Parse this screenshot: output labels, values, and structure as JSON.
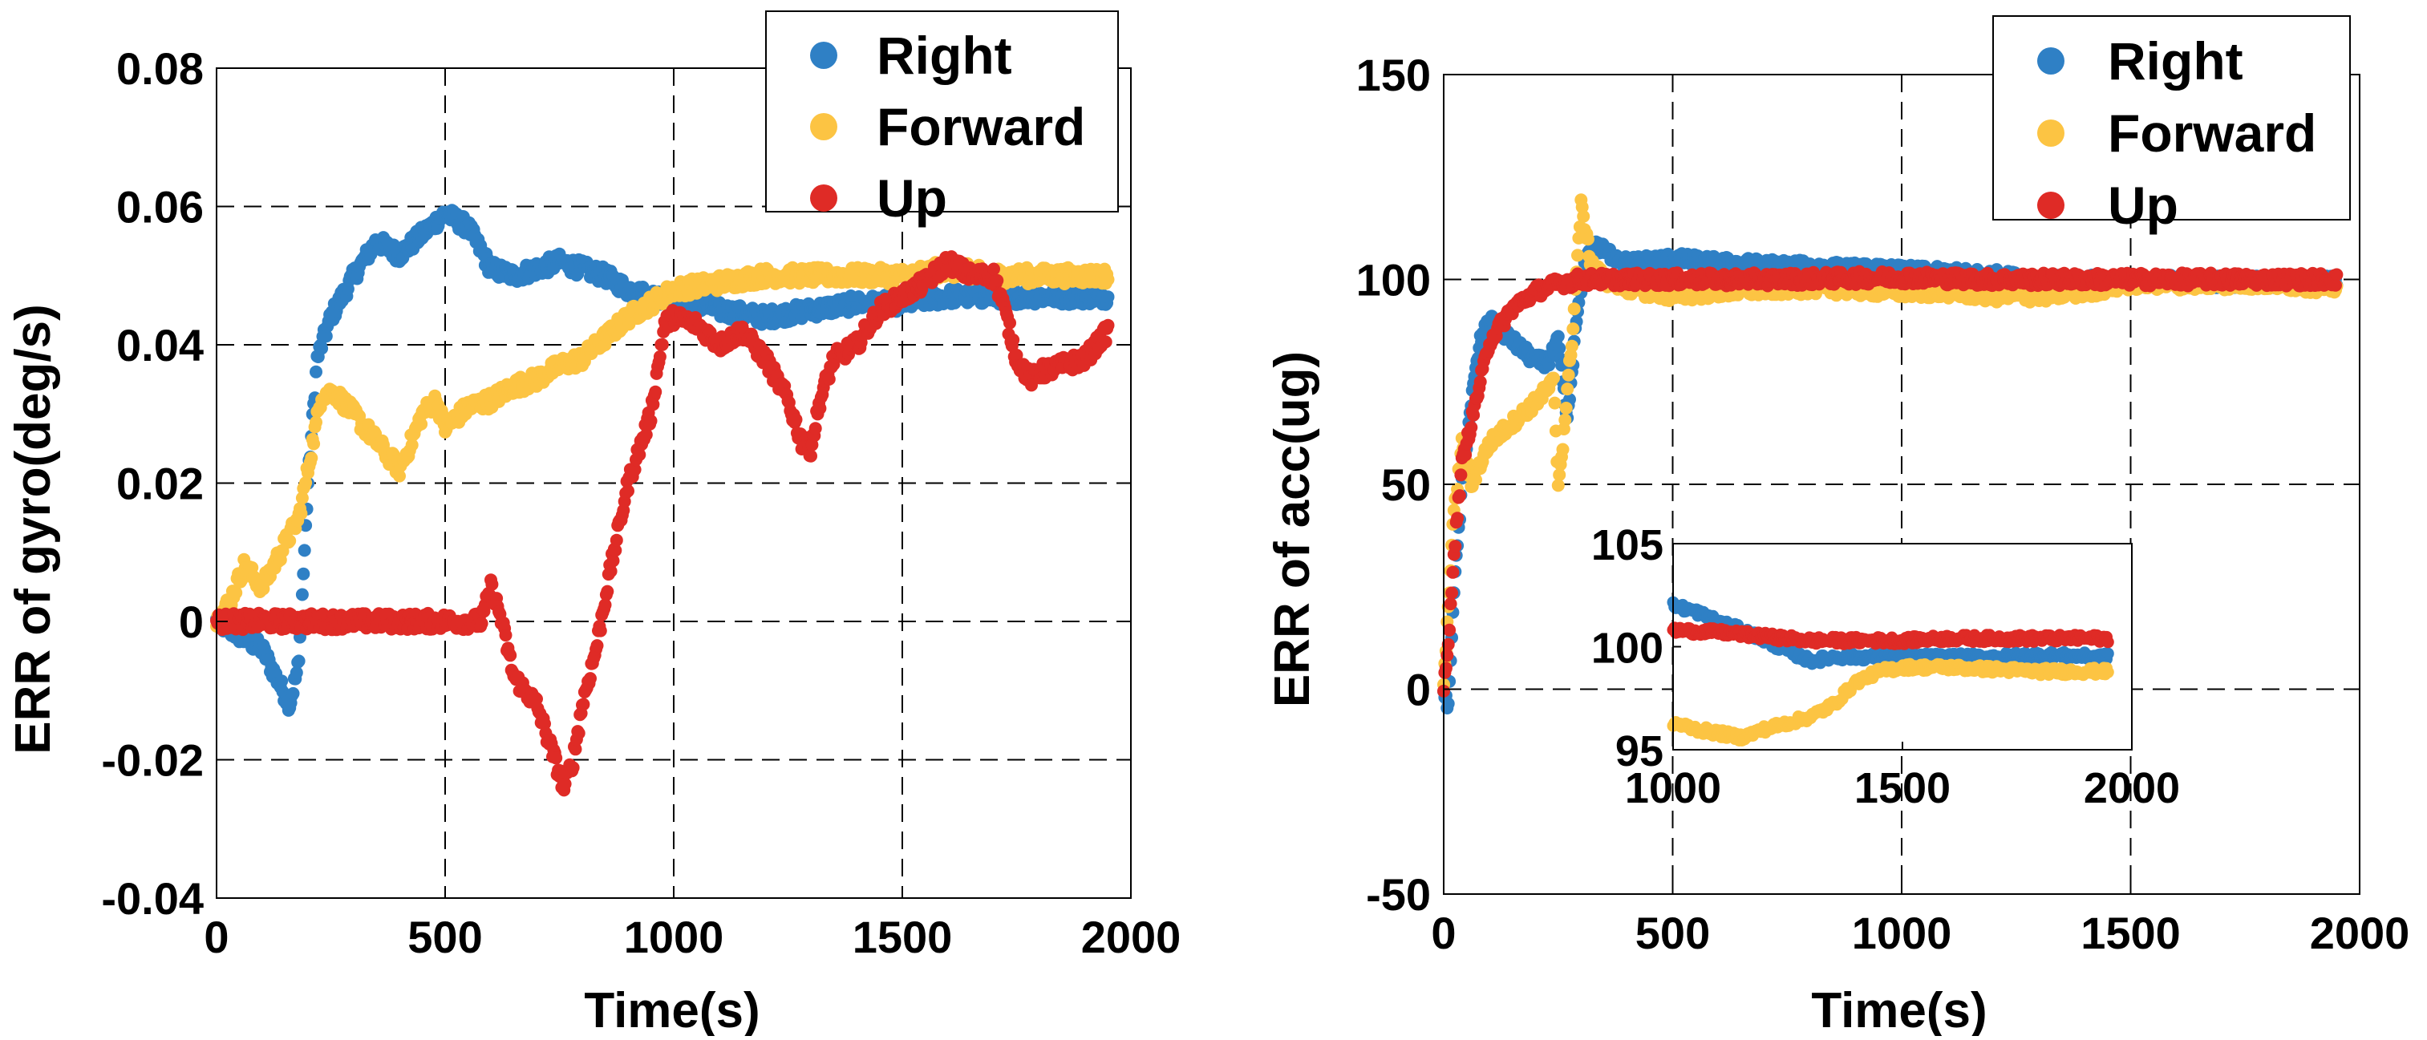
{
  "colors": {
    "right": "#2f80c5",
    "forward": "#fcc443",
    "up": "#df2b26"
  },
  "chart_data": [
    {
      "type": "scatter",
      "title": "",
      "xlabel": "Time(s)",
      "ylabel": "ERR of gyro(deg/s)",
      "xlim": [
        0,
        2000
      ],
      "ylim": [
        -0.04,
        0.08
      ],
      "xticks": [
        0,
        500,
        1000,
        1500,
        2000
      ],
      "xtick_labels": [
        "0",
        "500",
        "1000",
        "1500",
        "2000"
      ],
      "yticks": [
        -0.04,
        -0.02,
        0,
        0.02,
        0.04,
        0.06,
        0.08
      ],
      "ytick_labels": [
        "-0.04",
        "-0.02",
        "0",
        "0.02",
        "0.04",
        "0.06",
        "0.08"
      ],
      "grid": true,
      "legend": "top-right",
      "legend_labels": [
        "Right",
        "Forward",
        "Up"
      ],
      "series": [
        {
          "name": "Right",
          "color_key": "right",
          "x": [
            0,
            50,
            100,
            130,
            160,
            180,
            200,
            220,
            250,
            300,
            350,
            400,
            450,
            500,
            550,
            600,
            650,
            700,
            750,
            800,
            850,
            900,
            950,
            1000,
            1100,
            1200,
            1300,
            1400,
            1500,
            1600,
            1700,
            1800,
            1900,
            1950
          ],
          "y": [
            0,
            -0.002,
            -0.004,
            -0.008,
            -0.012,
            -0.006,
            0.02,
            0.038,
            0.044,
            0.05,
            0.055,
            0.053,
            0.056,
            0.059,
            0.057,
            0.051,
            0.05,
            0.051,
            0.052,
            0.051,
            0.05,
            0.048,
            0.047,
            0.047,
            0.045,
            0.044,
            0.045,
            0.046,
            0.046,
            0.047,
            0.047,
            0.047,
            0.047,
            0.047
          ]
        },
        {
          "name": "Forward",
          "color_key": "forward",
          "x": [
            0,
            30,
            60,
            100,
            140,
            180,
            200,
            230,
            260,
            300,
            350,
            400,
            420,
            450,
            480,
            500,
            550,
            600,
            650,
            700,
            750,
            800,
            850,
            900,
            950,
            1000,
            1100,
            1200,
            1300,
            1400,
            1500,
            1600,
            1700,
            1800,
            1900,
            1950
          ],
          "y": [
            0,
            0.003,
            0.008,
            0.005,
            0.01,
            0.015,
            0.022,
            0.033,
            0.033,
            0.03,
            0.026,
            0.022,
            0.025,
            0.03,
            0.032,
            0.028,
            0.031,
            0.032,
            0.034,
            0.035,
            0.037,
            0.038,
            0.041,
            0.044,
            0.046,
            0.048,
            0.049,
            0.05,
            0.05,
            0.05,
            0.05,
            0.051,
            0.05,
            0.05,
            0.05,
            0.05
          ]
        },
        {
          "name": "Up",
          "color_key": "up",
          "x": [
            0,
            100,
            200,
            300,
            400,
            500,
            580,
            600,
            620,
            650,
            700,
            730,
            760,
            780,
            800,
            830,
            860,
            900,
            950,
            980,
            1000,
            1050,
            1100,
            1150,
            1200,
            1250,
            1280,
            1300,
            1320,
            1350,
            1400,
            1450,
            1500,
            1550,
            1600,
            1650,
            1700,
            1720,
            1750,
            1780,
            1800,
            1850,
            1900,
            1950
          ],
          "y": [
            0,
            0,
            0,
            0,
            0,
            0,
            0,
            0.005,
            0.001,
            -0.008,
            -0.012,
            -0.018,
            -0.024,
            -0.02,
            -0.012,
            -0.004,
            0.007,
            0.02,
            0.03,
            0.043,
            0.044,
            0.043,
            0.04,
            0.042,
            0.038,
            0.032,
            0.026,
            0.025,
            0.032,
            0.038,
            0.04,
            0.045,
            0.047,
            0.049,
            0.052,
            0.05,
            0.05,
            0.046,
            0.038,
            0.035,
            0.036,
            0.037,
            0.038,
            0.042
          ]
        }
      ]
    },
    {
      "type": "scatter",
      "title": "",
      "xlabel": "Time(s)",
      "ylabel": "ERR of acc(ug)",
      "xlim": [
        0,
        2000
      ],
      "ylim": [
        -50,
        150
      ],
      "xticks": [
        0,
        500,
        1000,
        1500,
        2000
      ],
      "xtick_labels": [
        "0",
        "500",
        "1000",
        "1500",
        "2000"
      ],
      "yticks": [
        -50,
        0,
        50,
        100,
        150
      ],
      "ytick_labels": [
        "-50",
        "0",
        "50",
        "100",
        "150"
      ],
      "grid": true,
      "legend": "top-right",
      "legend_labels": [
        "Right",
        "Forward",
        "Up"
      ],
      "series": [
        {
          "name": "Right",
          "color_key": "right",
          "x": [
            0,
            10,
            20,
            40,
            60,
            80,
            100,
            150,
            200,
            230,
            250,
            270,
            290,
            310,
            330,
            350,
            400,
            500,
            600,
            800,
            1000,
            1200,
            1300,
            1400,
            1500,
            1700,
            1950
          ],
          "y": [
            0,
            -5,
            20,
            50,
            70,
            85,
            90,
            85,
            80,
            80,
            85,
            65,
            90,
            105,
            108,
            107,
            104,
            105,
            104,
            103,
            102,
            101,
            99.5,
            99.5,
            99.5,
            99.5,
            99.5
          ]
        },
        {
          "name": "Forward",
          "color_key": "forward",
          "x": [
            0,
            10,
            20,
            40,
            60,
            80,
            100,
            150,
            200,
            240,
            250,
            260,
            280,
            300,
            320,
            350,
            400,
            500,
            600,
            800,
            1000,
            1100,
            1200,
            1300,
            1400,
            1500,
            1600,
            1700,
            1800,
            1950
          ],
          "y": [
            0,
            20,
            40,
            60,
            50,
            55,
            60,
            65,
            70,
            75,
            50,
            60,
            85,
            118,
            105,
            100,
            98,
            96,
            97,
            98,
            97,
            97,
            96,
            96,
            97,
            99,
            99,
            99,
            99,
            98
          ]
        },
        {
          "name": "Up",
          "color_key": "up",
          "x": [
            0,
            10,
            20,
            40,
            60,
            80,
            100,
            150,
            200,
            250,
            300,
            400,
            500,
            700,
            1000,
            1200,
            1400,
            1600,
            1800,
            1950
          ],
          "y": [
            0,
            10,
            30,
            55,
            65,
            75,
            85,
            93,
            97,
            99,
            100,
            100,
            100,
            100,
            100.5,
            100,
            100,
            100,
            100,
            100
          ]
        }
      ],
      "inset": {
        "xlim": [
          1000,
          2000
        ],
        "ylim": [
          95,
          105
        ],
        "xticks": [
          1000,
          1500,
          2000
        ],
        "xtick_labels": [
          "1000",
          "1500",
          "2000"
        ],
        "yticks": [
          95,
          100,
          105
        ],
        "ytick_labels": [
          "95",
          "100",
          "105"
        ],
        "series": [
          {
            "name": "Right",
            "color_key": "right",
            "x": [
              1000,
              1050,
              1100,
              1150,
              1200,
              1250,
              1300,
              1350,
              1400,
              1500,
              1600,
              1700,
              1800,
              1950
            ],
            "y": [
              102,
              101.7,
              101.2,
              100.8,
              100.3,
              99.8,
              99.3,
              99.5,
              99.5,
              99.5,
              99.5,
              99.5,
              99.6,
              99.5
            ]
          },
          {
            "name": "Forward",
            "color_key": "forward",
            "x": [
              1000,
              1050,
              1100,
              1150,
              1200,
              1250,
              1300,
              1350,
              1400,
              1450,
              1500,
              1600,
              1700,
              1800,
              1950
            ],
            "y": [
              96.3,
              96.0,
              95.8,
              95.6,
              96.0,
              96.3,
              96.6,
              97.2,
              98.3,
              98.8,
              99.0,
              99.0,
              98.9,
              98.8,
              98.8
            ]
          },
          {
            "name": "Up",
            "color_key": "up",
            "x": [
              1000,
              1100,
              1200,
              1300,
              1400,
              1500,
              1600,
              1700,
              1800,
              1950
            ],
            "y": [
              100.8,
              100.7,
              100.5,
              100.3,
              100.3,
              100.3,
              100.4,
              100.4,
              100.4,
              100.4
            ]
          }
        ]
      }
    }
  ]
}
